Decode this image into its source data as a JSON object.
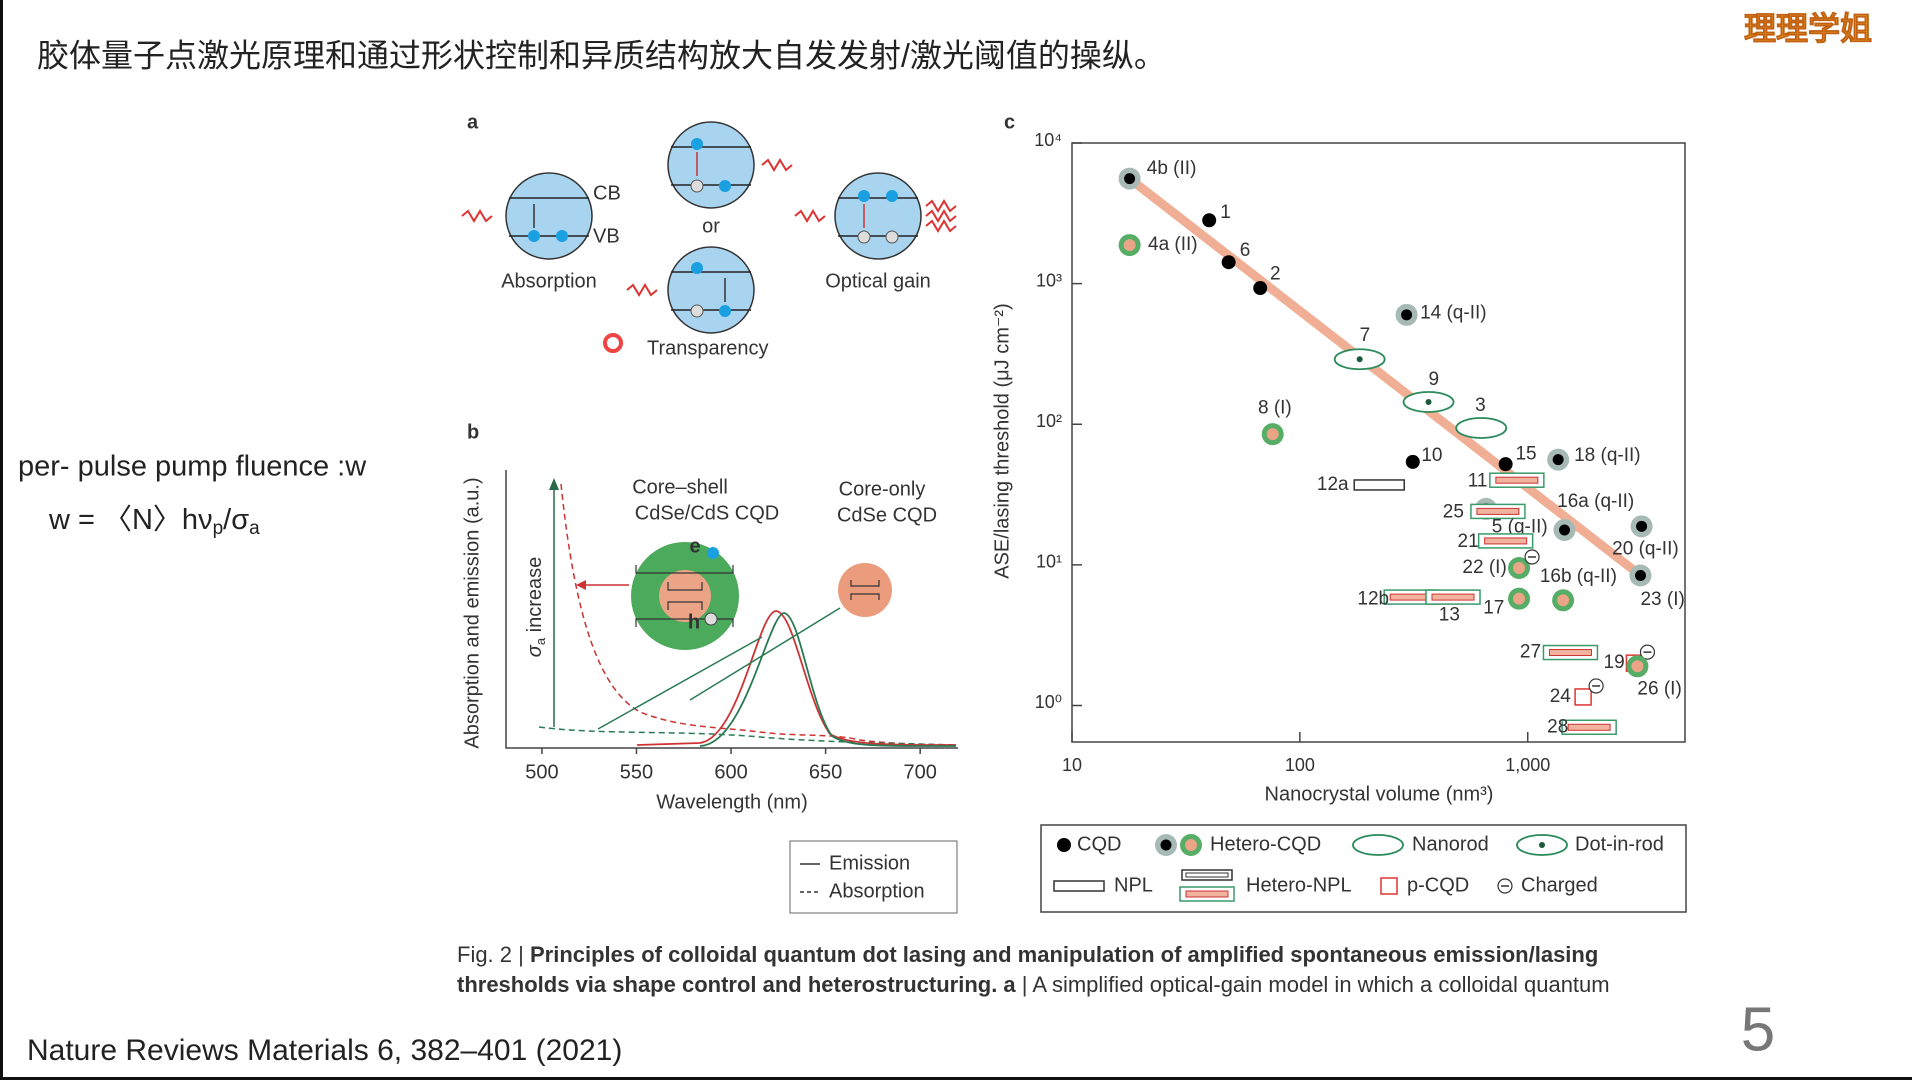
{
  "header": {
    "title": "胶体量子点激光原理和通过形状控制和异质结构放大自发发射/激光阈值的操纵。",
    "logo": "理理学姐"
  },
  "notes": {
    "definition": "per- pulse pump fluence :w",
    "formula": [
      "w = 〈N〉hν",
      "p",
      "/σ",
      "a"
    ]
  },
  "figure": {
    "panel_a": {
      "label": "a",
      "cb": "CB",
      "vb": "VB",
      "absorption": "Absorption",
      "or": "or",
      "transparency": "Transparency",
      "optical_gain": "Optical gain"
    },
    "panel_b": {
      "label": "b",
      "xlim": [
        481,
        720
      ],
      "xticks": [
        500,
        550,
        600,
        650,
        700
      ],
      "xlabel": "Wavelength (nm)",
      "ylabel": "Absorption and emission (a.u.)",
      "sigma_label": [
        "σ",
        "a",
        " increase"
      ],
      "core_shell": [
        "Core–shell",
        "CdSe/CdS CQD"
      ],
      "core_only": [
        "Core-only",
        "CdSe CQD"
      ],
      "e": "e",
      "h": "h",
      "legend": [
        "Emission",
        "Absorption"
      ]
    },
    "panel_c": {
      "label": "c",
      "type": "scatter",
      "log_x": true,
      "log_y": true,
      "xlim": [
        10,
        4900
      ],
      "ylim": [
        0.55,
        10000
      ],
      "xticks": [
        10,
        100,
        {
          "value": 1000,
          "label": "1,000"
        }
      ],
      "yticks": [
        {
          "value": 1,
          "label": "10⁰"
        },
        {
          "value": 10,
          "label": "10¹"
        },
        {
          "value": 100,
          "label": "10²"
        },
        {
          "value": 1000,
          "label": "10³"
        },
        {
          "value": 10000,
          "label": "10⁴"
        }
      ],
      "xlabel": "Nanocrystal volume (nm³)",
      "ylabel": "ASE/lasing threshold (μJ cm⁻²)",
      "trend": {
        "x": [
          17.9,
          3160
        ],
        "y": [
          5580,
          8.3
        ],
        "color": "#eea68a"
      },
      "points": [
        {
          "label": "4b (II)",
          "kind": "hetero-cqd-gray",
          "x": 17.9,
          "y": 5580
        },
        {
          "label": "1",
          "kind": "cqd",
          "x": 40,
          "y": 2820
        },
        {
          "label": "6",
          "kind": "cqd",
          "x": 48.7,
          "y": 1420
        },
        {
          "label": "2",
          "kind": "cqd",
          "x": 67,
          "y": 930
        },
        {
          "label": "4a (II)",
          "kind": "hetero-cqd",
          "x": 17.9,
          "y": 1880
        },
        {
          "label": "14 (q-II)",
          "kind": "hetero-cqd-gray",
          "x": 294,
          "y": 600
        },
        {
          "label": "7",
          "kind": "dot-in-rod",
          "x": 183,
          "y": 290
        },
        {
          "label": "9",
          "kind": "dot-in-rod",
          "x": 367,
          "y": 144
        },
        {
          "label": "3",
          "kind": "nanorod",
          "x": 625,
          "y": 94
        },
        {
          "label": "8 (I)",
          "kind": "hetero-cqd",
          "x": 76,
          "y": 85
        },
        {
          "label": "10",
          "kind": "cqd",
          "x": 313,
          "y": 54
        },
        {
          "label": "15",
          "kind": "cqd",
          "x": 800,
          "y": 52
        },
        {
          "label": "18 (q-II)",
          "kind": "hetero-cqd-gray",
          "x": 1360,
          "y": 56
        },
        {
          "label": "12a",
          "kind": "npl",
          "x": 223,
          "y": 37
        },
        {
          "label": "11",
          "kind": "hetero-npl",
          "x": 896,
          "y": 40
        },
        {
          "label": "16a (q-II)",
          "kind": "hetero-cqd-gray",
          "x": 1450,
          "y": 17.7
        },
        {
          "label": "20 (q-II)",
          "kind": "hetero-cqd-gray",
          "x": 3160,
          "y": 18.8
        },
        {
          "label": "25",
          "kind": "hetero-cqd-gray",
          "x": 656,
          "y": 25
        },
        {
          "label": "5 (q-II)",
          "kind": "hetero-npl",
          "x": 740,
          "y": 24
        },
        {
          "label": "21",
          "kind": "hetero-npl",
          "x": 800,
          "y": 14.8
        },
        {
          "label": "22 (I)",
          "kind": "hetero-cqd",
          "x": 916,
          "y": 9.5,
          "charged": true
        },
        {
          "label": "23 (I)",
          "kind": "hetero-cqd-gray",
          "x": 3125,
          "y": 8.4
        },
        {
          "label": "16b (q-II)",
          "kind": "hetero-cqd",
          "x": 1430,
          "y": 5.6
        },
        {
          "label": "12b",
          "kind": "hetero-npl",
          "x": 308,
          "y": 5.9
        },
        {
          "label": "13",
          "kind": "hetero-npl",
          "x": 470,
          "y": 5.9
        },
        {
          "label": "17",
          "kind": "hetero-cqd",
          "x": 916,
          "y": 5.75
        },
        {
          "label": "27",
          "kind": "hetero-npl",
          "x": 1540,
          "y": 2.38
        },
        {
          "label": "24",
          "kind": "p-cqd",
          "x": 1750,
          "y": 1.15,
          "charged": true
        },
        {
          "label": "19",
          "kind": "p-cqd",
          "x": 2940,
          "y": 2.0,
          "charged": true
        },
        {
          "label": "26 (I)",
          "kind": "hetero-cqd",
          "x": 3030,
          "y": 1.9
        },
        {
          "label": "28",
          "kind": "hetero-npl",
          "x": 1860,
          "y": 0.7
        }
      ],
      "legend": [
        {
          "kind": "cqd",
          "text": "CQD"
        },
        {
          "kind": "hetero-cqd",
          "text": "Hetero-CQD"
        },
        {
          "kind": "nanorod",
          "text": "Nanorod"
        },
        {
          "kind": "dot-in-rod",
          "text": "Dot-in-rod"
        },
        {
          "kind": "npl",
          "text": "NPL"
        },
        {
          "kind": "hetero-npl",
          "text": "Hetero-NPL"
        },
        {
          "kind": "p-cqd",
          "text": "p-CQD"
        },
        {
          "kind": "charged",
          "text": "Charged"
        }
      ]
    },
    "caption": {
      "line1": {
        "prefix": "Fig. 2 | ",
        "bold": "Principles of colloidal quantum dot lasing and manipulation of amplified spontaneous emission/lasing"
      },
      "line2": {
        "bold": "thresholds via shape control and heterostructuring. a",
        "rest": " | A simplified optical-gain model in which a colloidal quantum"
      }
    }
  },
  "footer": {
    "citation": "Nature Reviews Materials  6, 382–401 (2021)",
    "page": "5"
  }
}
